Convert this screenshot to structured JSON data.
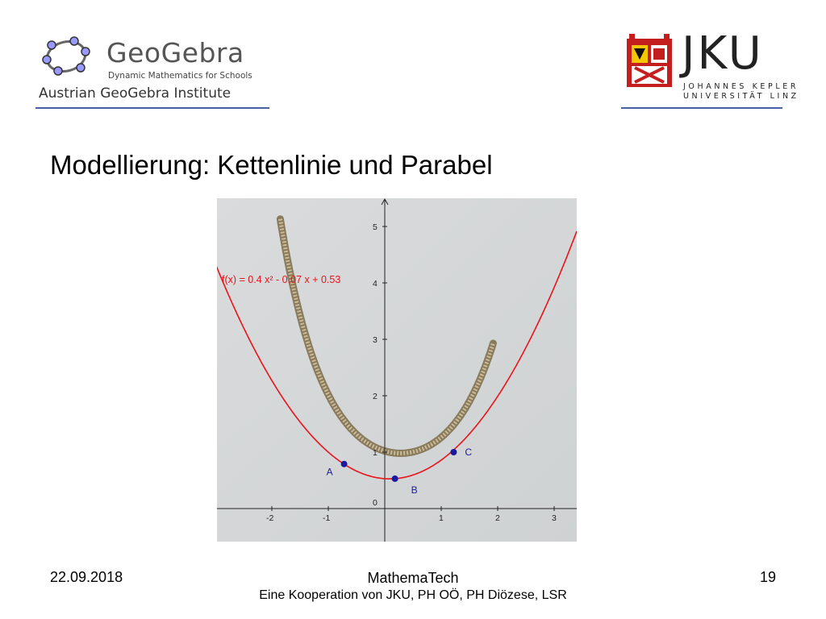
{
  "header": {
    "geogebra": {
      "name": "GeoGebra",
      "tagline": "Dynamic Mathematics for Schools",
      "institute": "Austrian GeoGebra Institute"
    },
    "jku": {
      "name": "JKU",
      "subtitle_line1": "JOHANNES KEPLER",
      "subtitle_line2": "UNIVERSITÄT LINZ"
    },
    "rule_color": "#4a5fa8"
  },
  "slide": {
    "title": "Modellierung:  Kettenlinie und Parabel"
  },
  "graph": {
    "function_label": "f(x) = 0.4 x² - 0.07 x + 0.53",
    "function_color": "#e8141c",
    "point_color": "#1a1aa0",
    "x_ticks": [
      "-2",
      "-1",
      "0",
      "1",
      "2",
      "3"
    ],
    "y_ticks": [
      "1",
      "2",
      "3",
      "4",
      "5"
    ],
    "xlim": [
      -3,
      3.4
    ],
    "ylim": [
      -0.5,
      5.6
    ],
    "points": [
      {
        "label": "A",
        "x": -0.72,
        "y": 0.79
      },
      {
        "label": "B",
        "x": 0.18,
        "y": 0.53
      },
      {
        "label": "C",
        "x": 1.22,
        "y": 1.0
      }
    ]
  },
  "footer": {
    "date": "22.09.2018",
    "center_line1": "MathemaTech",
    "center_line2": "Eine Kooperation von JKU, PH OÖ, PH Diözese, LSR",
    "page": "19"
  }
}
